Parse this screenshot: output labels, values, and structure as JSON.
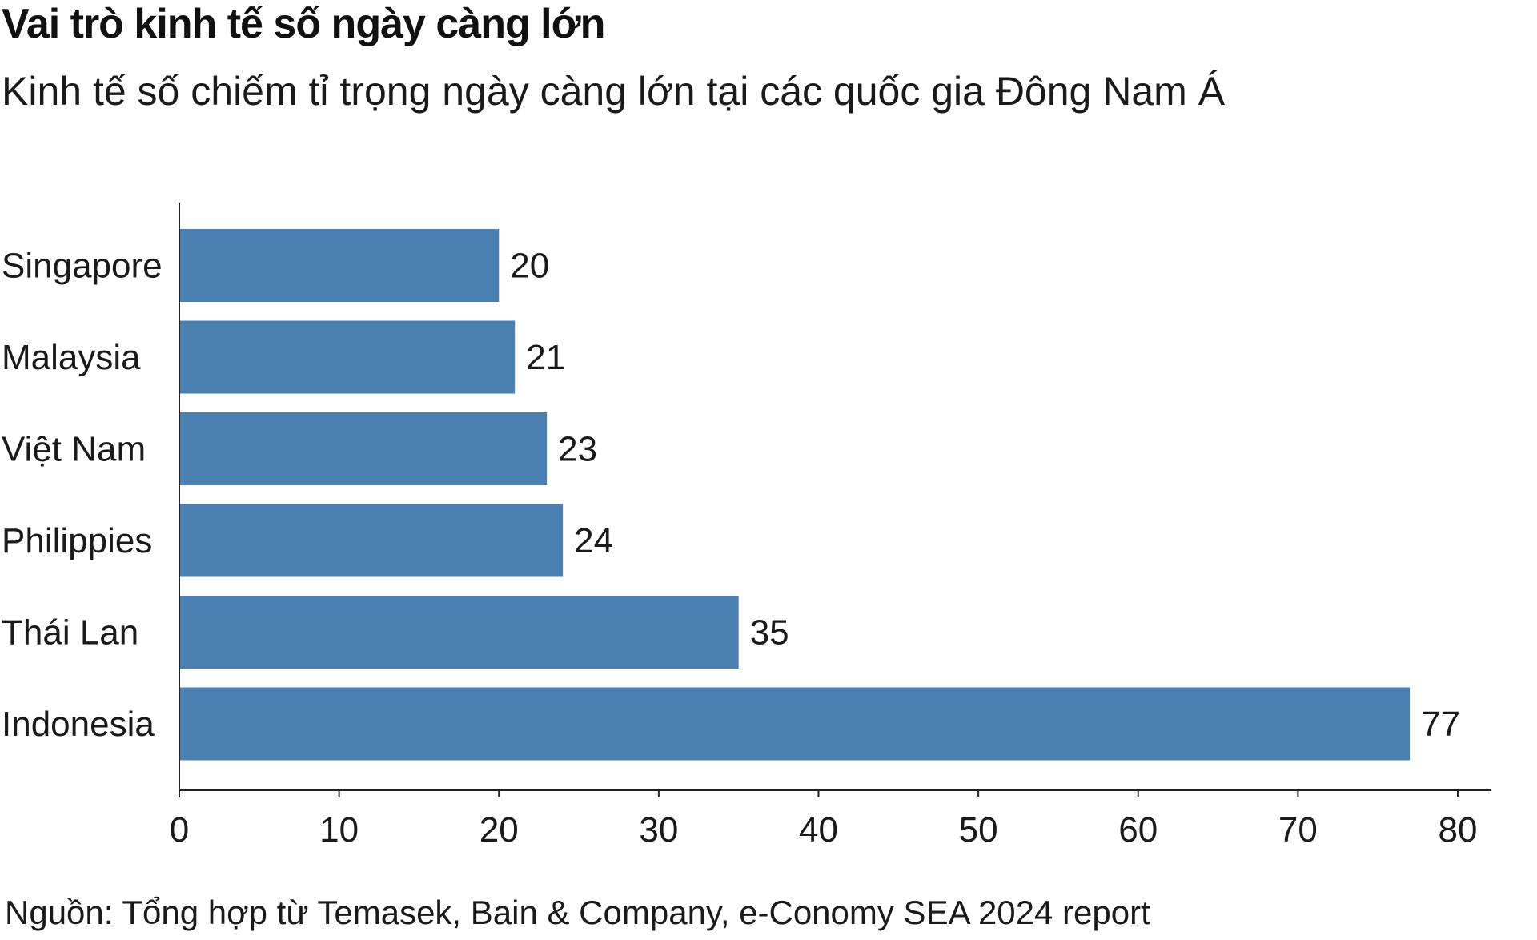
{
  "chart_data": {
    "type": "bar",
    "orientation": "horizontal",
    "title": "Vai trò kinh tế số ngày càng lớn",
    "subtitle": "Kinh tế số chiếm tỉ trọng ngày càng lớn tại các quốc gia Đông Nam Á",
    "categories": [
      "Singapore",
      "Malaysia",
      "Việt Nam",
      "Philippies",
      "Thái Lan",
      "Indonesia"
    ],
    "values": [
      20,
      21,
      23,
      24,
      35,
      77
    ],
    "data_labels": [
      "20",
      "21",
      "23",
      "24",
      "35",
      "77"
    ],
    "xlim": [
      0,
      82
    ],
    "xticks": [
      "0",
      "10",
      "20",
      "30",
      "40",
      "50",
      "60",
      "70",
      "80"
    ],
    "xlabel": "",
    "ylabel": "",
    "grid": false,
    "bar_color": "#4a80b1",
    "source": "Nguồn: Tổng hợp từ Temasek, Bain & Company, e-Conomy SEA 2024 report"
  }
}
